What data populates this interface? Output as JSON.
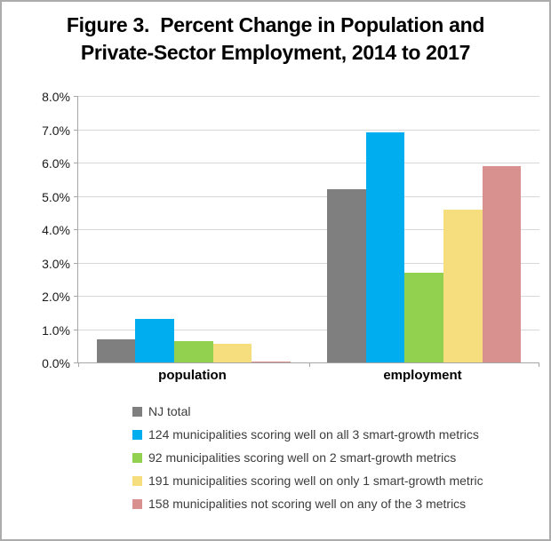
{
  "figure": {
    "title_line1": "Figure 3.  Percent Change in Population and",
    "title_line2": "Private-Sector Employment, 2014 to 2017"
  },
  "chart_data": {
    "type": "bar",
    "title": "Figure 3. Percent Change in Population and Private-Sector Employment, 2014 to 2017",
    "categories": [
      "population",
      "employment"
    ],
    "series": [
      {
        "name": "NJ total",
        "color": "#7F7F7F",
        "values": [
          0.7,
          5.2
        ]
      },
      {
        "name": "124 municipalities scoring well on all 3 smart-growth metrics",
        "color": "#00AEEF",
        "values": [
          1.3,
          6.9
        ]
      },
      {
        "name": "92 municipalities scoring well on 2 smart-growth metrics",
        "color": "#92D050",
        "values": [
          0.65,
          2.7
        ]
      },
      {
        "name": "191 municipalities scoring well on only 1 smart-growth metric",
        "color": "#F6DE7E",
        "values": [
          0.55,
          4.6
        ]
      },
      {
        "name": "158 municipalities not scoring well on any of the 3 metrics",
        "color": "#D9918F",
        "values": [
          0.02,
          5.9
        ]
      }
    ],
    "ylim": [
      0,
      8
    ],
    "yticks": [
      "8.0%",
      "7.0%",
      "6.0%",
      "5.0%",
      "4.0%",
      "3.0%",
      "2.0%",
      "1.0%",
      "0.0%"
    ],
    "xlabel": "",
    "ylabel": "",
    "grid": true,
    "legend_position": "bottom-left",
    "axis_color": "#A6A6A6",
    "gridline_color": "#D8D8D8"
  }
}
